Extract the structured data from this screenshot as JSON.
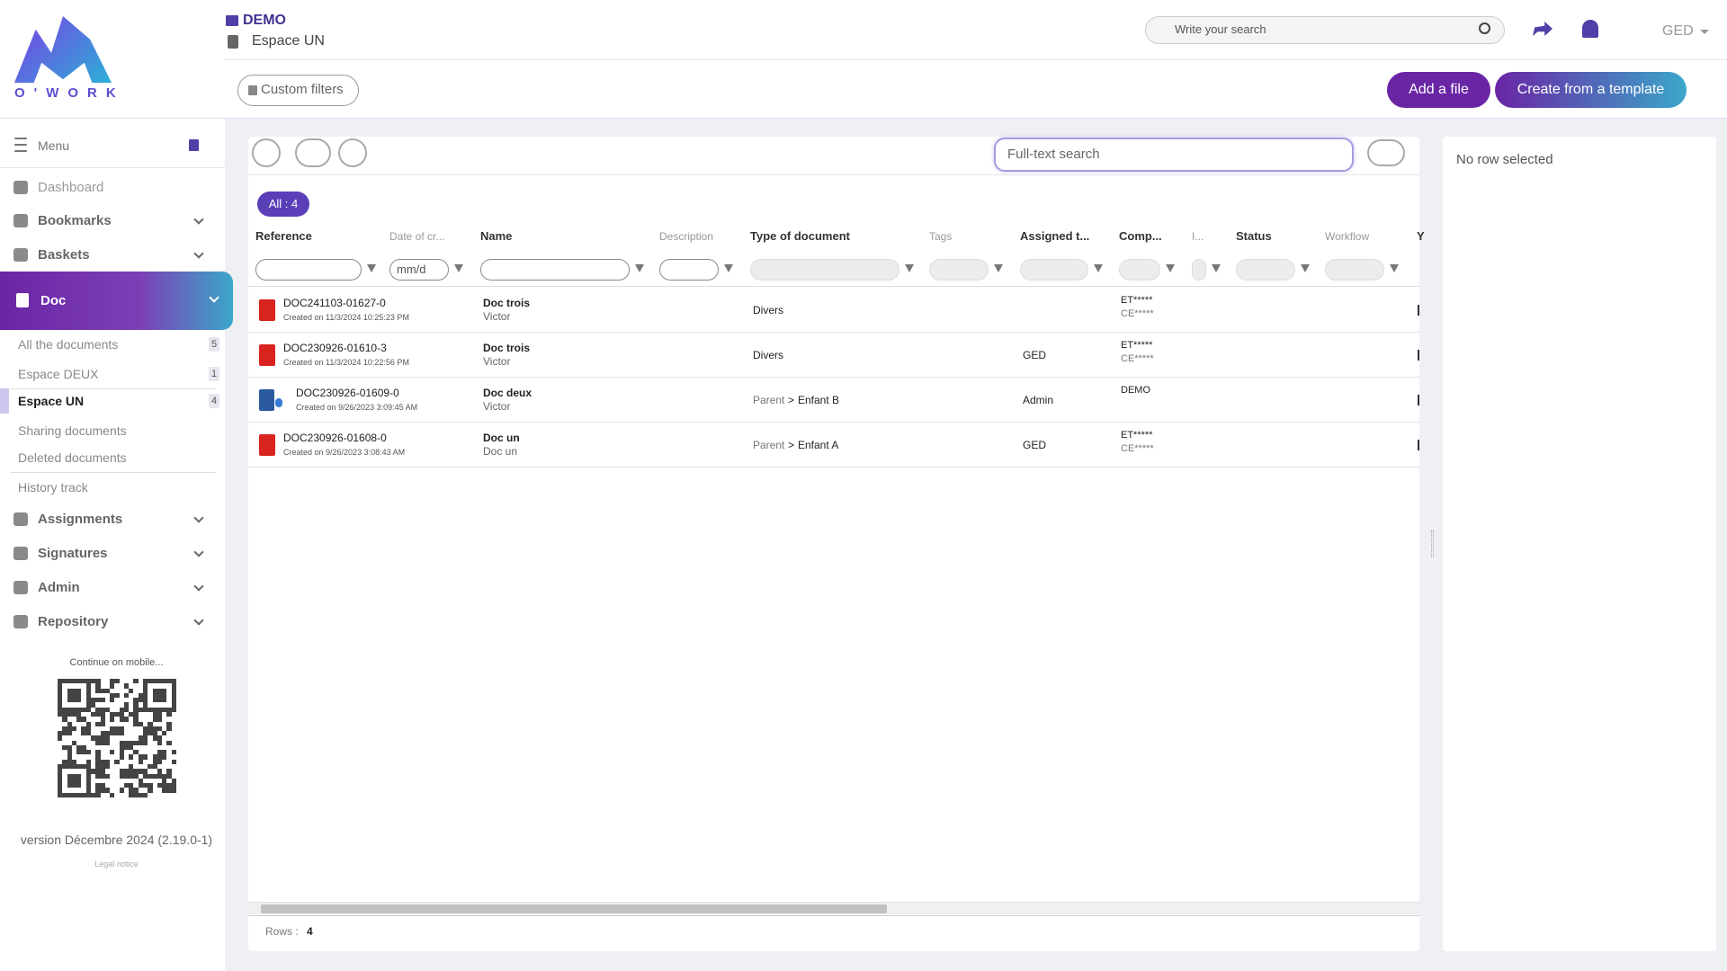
{
  "header": {
    "brand": "O'WORK",
    "space": "DEMO",
    "subspace": "Espace UN",
    "search_placeholder": "Write your search",
    "user": "GED"
  },
  "toolbar": {
    "filter_button": "Custom filters",
    "add_file": "Add a file",
    "create_template": "Create from a template"
  },
  "sidebar": {
    "menu": "Menu",
    "top_items": [
      {
        "label": "Dashboard",
        "chevron": false
      },
      {
        "label": "Bookmarks",
        "chevron": true
      },
      {
        "label": "Baskets",
        "chevron": true
      }
    ],
    "active": "Doc",
    "doc_items": [
      {
        "label": "All the documents",
        "count": 5
      },
      {
        "label": "Espace DEUX",
        "count": 1
      },
      {
        "label": "Espace UN",
        "count": 4,
        "selected": true
      },
      {
        "label": "Sharing documents"
      },
      {
        "label": "Deleted documents"
      },
      {
        "label": "History track"
      }
    ],
    "bottom_items": [
      "Assignments",
      "Signatures",
      "Admin",
      "Repository"
    ],
    "mobile": "Continue on mobile...",
    "version": "version Décembre 2024 (2.19.0-1)",
    "legal": "Legal notice"
  },
  "grid": {
    "fulltext_placeholder": "Full-text search",
    "badge": "All : 4",
    "columns": [
      "Reference",
      "Date of cr...",
      "Name",
      "Description",
      "Type of document",
      "Tags",
      "Assigned t...",
      "Comp...",
      "I...",
      "Status",
      "Workflow",
      "Y"
    ],
    "date_placeholder": "mm/d",
    "path_separator": ">",
    "rows": [
      {
        "icon": "pdf",
        "reference": "DOC241103-01627-0",
        "created": "Created on 11/3/2024 10:25:23 PM",
        "name": "Doc trois",
        "author": "Victor",
        "type": [
          "Divers"
        ],
        "company": [
          "ET*****",
          "CE*****"
        ]
      },
      {
        "icon": "pdf",
        "reference": "DOC230926-01610-3",
        "created": "Created on 11/3/2024 10:22:56 PM",
        "name": "Doc trois",
        "author": "Victor",
        "type": [
          "Divers"
        ],
        "assigned": "GED",
        "company": [
          "ET*****",
          "CE*****"
        ]
      },
      {
        "icon": "doc",
        "reference": "DOC230926-01609-0",
        "created": "Created on 9/26/2023 3:09:45 AM",
        "name": "Doc deux",
        "author": "Victor",
        "type": [
          "Parent",
          "Enfant B"
        ],
        "assigned": "Admin",
        "company": [
          "DEMO"
        ]
      },
      {
        "icon": "pdf",
        "reference": "DOC230926-01608-0",
        "created": "Created on 9/26/2023 3:08:43 AM",
        "name": "Doc un",
        "author": "Doc un",
        "type": [
          "Parent",
          "Enfant A"
        ],
        "assigned": "GED",
        "company": [
          "ET*****",
          "CE*****"
        ]
      }
    ],
    "footer_label": "Rows :",
    "row_count": 4
  },
  "details": {
    "empty": "No row selected"
  }
}
